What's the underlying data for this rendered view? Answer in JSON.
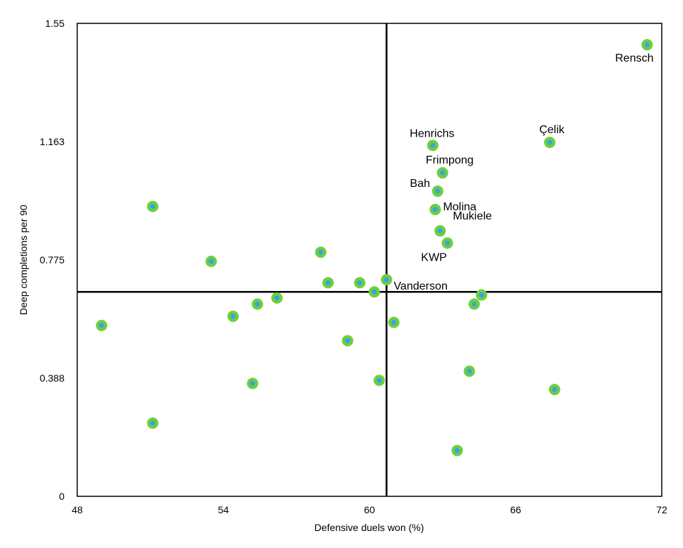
{
  "chart_data": {
    "type": "scatter",
    "title": "",
    "xlabel": "Defensive duels won (%)",
    "ylabel": "Deep completions per 90",
    "xlim": [
      48,
      72
    ],
    "ylim": [
      0,
      1.55
    ],
    "xticks": [
      "48",
      "54",
      "60",
      "66",
      "72"
    ],
    "xtick_values": [
      48,
      54,
      60,
      66,
      72
    ],
    "yticks": [
      "0",
      "0.388",
      "0.775",
      "1.163",
      "1.55"
    ],
    "ytick_values": [
      0,
      0.3875,
      0.775,
      1.1625,
      1.55
    ],
    "reference_lines": {
      "x": 60.7,
      "y": 0.67
    },
    "grid": false,
    "colors": {
      "marker_outer": "#6ccf3f",
      "marker_inner": "#3aa0e8",
      "lines": "#000000",
      "frame": "#000000"
    },
    "points": [
      {
        "x": 71.4,
        "y": 1.48,
        "label": "Rensch"
      },
      {
        "x": 67.4,
        "y": 1.16,
        "label": "Çelik"
      },
      {
        "x": 62.6,
        "y": 1.15,
        "label": "Henrichs"
      },
      {
        "x": 63.0,
        "y": 1.06,
        "label": "Frimpong"
      },
      {
        "x": 62.8,
        "y": 1.0,
        "label": "Bah"
      },
      {
        "x": 62.7,
        "y": 0.94,
        "label": "Molina"
      },
      {
        "x": 62.9,
        "y": 0.87,
        "label": "Mukiele"
      },
      {
        "x": 63.2,
        "y": 0.83,
        "label": "KWP"
      },
      {
        "x": 60.7,
        "y": 0.71,
        "label": "Vanderson"
      },
      {
        "x": 51.1,
        "y": 0.95,
        "label": ""
      },
      {
        "x": 53.5,
        "y": 0.77,
        "label": ""
      },
      {
        "x": 58.0,
        "y": 0.8,
        "label": ""
      },
      {
        "x": 58.3,
        "y": 0.7,
        "label": ""
      },
      {
        "x": 59.6,
        "y": 0.7,
        "label": ""
      },
      {
        "x": 60.2,
        "y": 0.67,
        "label": ""
      },
      {
        "x": 64.6,
        "y": 0.66,
        "label": ""
      },
      {
        "x": 64.3,
        "y": 0.63,
        "label": ""
      },
      {
        "x": 56.2,
        "y": 0.65,
        "label": ""
      },
      {
        "x": 55.4,
        "y": 0.63,
        "label": ""
      },
      {
        "x": 54.4,
        "y": 0.59,
        "label": ""
      },
      {
        "x": 49.0,
        "y": 0.56,
        "label": ""
      },
      {
        "x": 61.0,
        "y": 0.57,
        "label": ""
      },
      {
        "x": 59.1,
        "y": 0.51,
        "label": ""
      },
      {
        "x": 64.1,
        "y": 0.41,
        "label": ""
      },
      {
        "x": 60.4,
        "y": 0.38,
        "label": ""
      },
      {
        "x": 55.2,
        "y": 0.37,
        "label": ""
      },
      {
        "x": 67.6,
        "y": 0.35,
        "label": ""
      },
      {
        "x": 51.1,
        "y": 0.24,
        "label": ""
      },
      {
        "x": 63.6,
        "y": 0.15,
        "label": ""
      }
    ]
  }
}
